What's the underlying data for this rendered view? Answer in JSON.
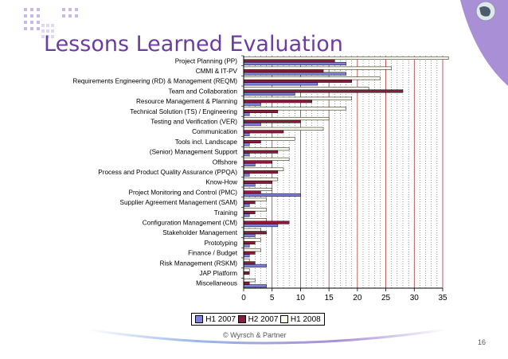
{
  "slide": {
    "title": "Lessons Learned Evaluation",
    "copyright": "© Wyrsch & Partner",
    "page_number": "16"
  },
  "colors": {
    "title": "#6b3da0",
    "h1": "#8080e0",
    "h2": "#8b1a3c",
    "h3": "#fffff0",
    "accent_purple": "#a98fd6"
  },
  "chart_data": {
    "type": "bar",
    "orientation": "horizontal",
    "title": "",
    "xlabel": "",
    "ylabel": "",
    "xlim": [
      0,
      35
    ],
    "xticks": [
      0,
      5,
      10,
      15,
      20,
      25,
      30,
      35
    ],
    "legend_position": "bottom",
    "categories": [
      "Project Planning (PP)",
      "CMMI & IT-PV",
      "Requirements Engineering (RD) & Management (REQM)",
      "Team and Collaboration",
      "Resource Management & Planning",
      "Technical Solution (TS) / Engineering",
      "Testing and Verification (VER)",
      "Communication",
      "Tools incl. Landscape",
      "(Senior) Management Support",
      "Offshore",
      "Process and Product Quality Assurance (PPQA)",
      "Know-How",
      "Project Monitoring and Control (PMC)",
      "Supplier Agreement Management (SAM)",
      "Training",
      "Configuration Management (CM)",
      "Stakeholder Management",
      "Prototyping",
      "Finance / Budget",
      "Risk Management (RSKM)",
      "JAP Platform",
      "Miscellaneous"
    ],
    "series": [
      {
        "name": "H1 2007",
        "values": [
          18,
          18,
          13,
          9,
          3,
          1,
          3,
          1,
          1,
          1,
          2,
          1,
          2,
          10,
          1,
          1,
          6,
          2,
          1,
          1,
          4,
          0,
          4
        ]
      },
      {
        "name": "H2 2007",
        "values": [
          16,
          14,
          19,
          28,
          12,
          6,
          10,
          7,
          3,
          6,
          5,
          6,
          5,
          3,
          2,
          2,
          8,
          4,
          2,
          2,
          2,
          1,
          1
        ]
      },
      {
        "name": "H1 2008",
        "values": [
          36,
          26,
          24,
          22,
          19,
          18,
          15,
          14,
          9,
          8,
          8,
          7,
          6,
          5,
          4,
          4,
          4,
          3,
          3,
          3,
          1,
          1,
          2
        ]
      }
    ]
  }
}
